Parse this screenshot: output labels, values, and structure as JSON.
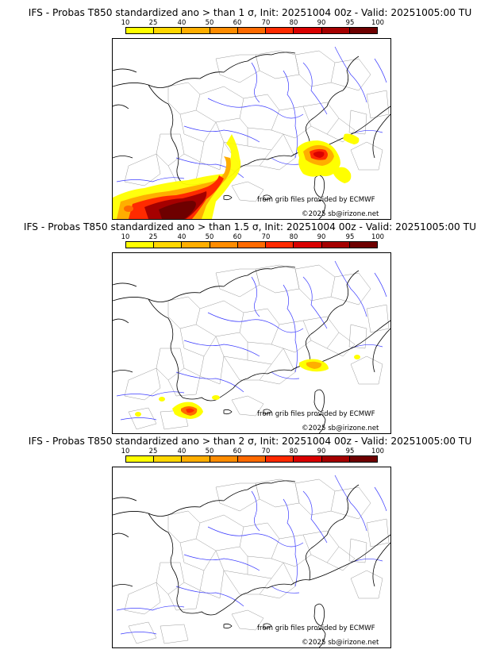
{
  "colorbar": {
    "ticks": [
      "10",
      "25",
      "40",
      "50",
      "60",
      "70",
      "80",
      "90",
      "95",
      "100"
    ],
    "colors": [
      "#ffff00",
      "#ffd700",
      "#ffae00",
      "#ff8c00",
      "#ff6a00",
      "#ff2a00",
      "#d90000",
      "#a50000",
      "#6e0000"
    ]
  },
  "credits": {
    "source": "from grib files provided by ECMWF",
    "copyright": "©2025 sb@irizone.net"
  },
  "panels": [
    {
      "title": "IFS - Probas T850  standardized ano > than 1 σ, Init: 20251004 00z - Valid: 20251005:00 TU",
      "sigma": 1
    },
    {
      "title": "IFS - Probas T850  standardized ano > than 1.5 σ, Init: 20251004 00z - Valid: 20251005:00 TU",
      "sigma": 1.5
    },
    {
      "title": "IFS - Probas T850  standardized ano > than 2 σ, Init: 20251004 00z - Valid: 20251005:00 TU",
      "sigma": 2
    }
  ]
}
